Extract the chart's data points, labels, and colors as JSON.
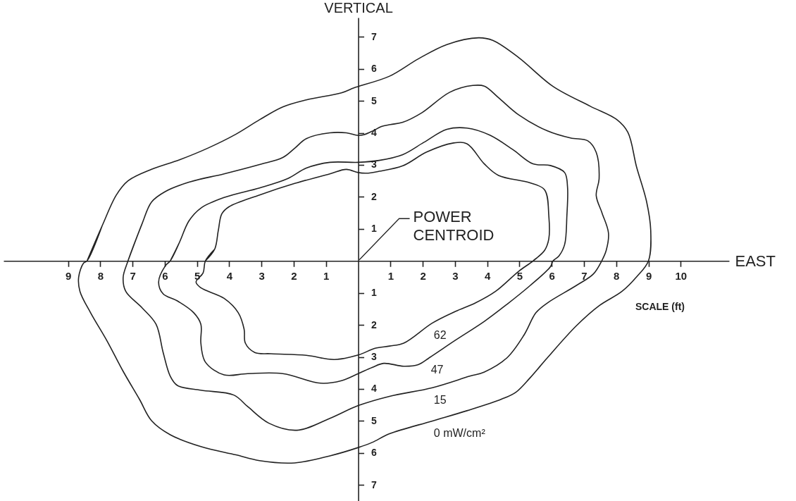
{
  "chart_data": {
    "type": "line",
    "xlabel": "EAST",
    "ylabel": "VERTICAL",
    "annotations": [
      "SCALE (ft)",
      "POWER CENTROID"
    ],
    "xlim": [
      -11,
      11.5
    ],
    "ylim": [
      -7.5,
      7.6
    ],
    "xticks": [
      {
        "value": -9,
        "label": "9"
      },
      {
        "value": -8,
        "label": "8"
      },
      {
        "value": -7,
        "label": "7"
      },
      {
        "value": -6,
        "label": "6"
      },
      {
        "value": -5,
        "label": "5"
      },
      {
        "value": -4,
        "label": "4"
      },
      {
        "value": -3,
        "label": "3"
      },
      {
        "value": -2,
        "label": "2"
      },
      {
        "value": -1,
        "label": "1"
      },
      1,
      2,
      3,
      4,
      5,
      6,
      7,
      8,
      9,
      10
    ],
    "yticks": [
      {
        "value": -7,
        "label": "7"
      },
      {
        "value": -6,
        "label": "6"
      },
      {
        "value": -5,
        "label": "5"
      },
      {
        "value": -4,
        "label": "4"
      },
      {
        "value": -3,
        "label": "3"
      },
      {
        "value": -2,
        "label": "2"
      },
      {
        "value": -1,
        "label": "1"
      },
      1,
      2,
      3,
      4,
      5,
      6,
      7
    ],
    "grid": false,
    "legend": false,
    "marker": "none",
    "line_style": "solid",
    "series": [
      {
        "name": "62",
        "color": "#222222",
        "x": [
          -4.74,
          -4.45,
          -4.34,
          -4.23,
          -4.01,
          -3.06,
          -1.97,
          -0.88,
          -0.37,
          0,
          0.25,
          0.65,
          1.38,
          2.12,
          2.93,
          3.37,
          3.91,
          4.35,
          5.33,
          5.78,
          5.91,
          5.91,
          5.78,
          5.42,
          4.98,
          4.26,
          3.64,
          3.01,
          2.3,
          1.41,
          0.97,
          0.52,
          0,
          -0.74,
          -1.61,
          -2.7,
          -3.21,
          -3.5,
          -3.54,
          -3.72,
          -4.16,
          -4.88,
          -5.03,
          -4.81,
          -4.74,
          -4.45
        ],
        "values": [
          0,
          0.37,
          0.95,
          1.47,
          1.69,
          2.06,
          2.42,
          2.72,
          2.86,
          2.76,
          2.74,
          2.8,
          2.97,
          3.4,
          3.68,
          3.66,
          3.03,
          2.67,
          2.44,
          2.22,
          1.41,
          0.69,
          0.33,
          0,
          -0.32,
          -0.95,
          -1.31,
          -1.58,
          -1.94,
          -2.57,
          -2.66,
          -2.73,
          -2.94,
          -3.08,
          -2.95,
          -2.9,
          -2.86,
          -2.57,
          -2.13,
          -1.62,
          -1.17,
          -0.84,
          -0.66,
          -0.37,
          0,
          0.37
        ]
      },
      {
        "name": "47",
        "color": "#222222",
        "x": [
          -5.83,
          -5.54,
          -5.25,
          -4.88,
          -4.16,
          -3.06,
          -2.19,
          -1.61,
          -0.88,
          0,
          0.65,
          1.38,
          2.03,
          2.75,
          3.37,
          4.08,
          4.79,
          5.42,
          5.96,
          6.4,
          6.49,
          6.47,
          6.4,
          6.22,
          6.04,
          5.96,
          5.33,
          4.62,
          3.91,
          3.01,
          2.21,
          1.86,
          1.41,
          0.79,
          0.43,
          0,
          -0.52,
          -1.17,
          -2.34,
          -3.43,
          -4.16,
          -4.74,
          -4.88,
          -4.88,
          -5.1,
          -5.61,
          -6.05,
          -6.19,
          -5.98,
          -5.83,
          -5.54
        ],
        "values": [
          0,
          0.59,
          1.25,
          1.65,
          1.98,
          2.28,
          2.57,
          2.9,
          3.08,
          3.08,
          3.14,
          3.32,
          3.7,
          4.11,
          4.15,
          3.93,
          3.48,
          3.03,
          2.98,
          2.76,
          2.31,
          1.41,
          0.51,
          0.15,
          0,
          -0.18,
          -0.77,
          -1.35,
          -1.89,
          -2.48,
          -3.02,
          -3.24,
          -3.29,
          -3.2,
          -3.33,
          -3.52,
          -3.74,
          -3.82,
          -3.52,
          -3.52,
          -3.56,
          -3.16,
          -2.57,
          -1.98,
          -1.62,
          -1.25,
          -1.03,
          -0.66,
          -0.15,
          0,
          0.59
        ]
      },
      {
        "name": "15",
        "color": "#222222",
        "x": [
          -7.14,
          -6.7,
          -6.41,
          -5.98,
          -5.25,
          -4.16,
          -3.06,
          -2.34,
          -1.97,
          -1.61,
          -0.88,
          -0.37,
          0,
          0.17,
          0.47,
          0.72,
          1.0,
          1.38,
          1.96,
          2.84,
          3.55,
          3.91,
          4.35,
          4.98,
          5.87,
          6.58,
          7.12,
          7.38,
          7.47,
          7.38,
          7.56,
          7.76,
          7.69,
          7.55,
          7.29,
          6.76,
          5.87,
          5.51,
          5.15,
          4.62,
          3.91,
          3.46,
          2.3,
          0.97,
          0,
          -0.88,
          -1.9,
          -2.77,
          -3.43,
          -3.86,
          -4.88,
          -5.61,
          -5.83,
          -6.05,
          -6.27,
          -6.7,
          -7.21,
          -7.29,
          -7.14,
          -6.7
        ],
        "values": [
          0,
          1.17,
          1.84,
          2.17,
          2.46,
          2.72,
          3.01,
          3.23,
          3.52,
          3.82,
          4.0,
          4.0,
          3.92,
          3.94,
          4.07,
          4.2,
          4.26,
          4.33,
          4.62,
          5.27,
          5.48,
          5.46,
          5.1,
          4.56,
          4.06,
          3.84,
          3.75,
          3.39,
          2.58,
          2.04,
          1.5,
          0.87,
          0.33,
          0,
          -0.41,
          -0.77,
          -1.31,
          -1.62,
          -2.3,
          -3.02,
          -3.47,
          -3.6,
          -3.96,
          -4.23,
          -4.52,
          -4.92,
          -5.29,
          -5.07,
          -4.55,
          -4.19,
          -4.04,
          -3.89,
          -3.6,
          -2.86,
          -1.98,
          -1.47,
          -0.95,
          -0.51,
          0,
          1.17
        ]
      },
      {
        "name": "0 mW/cm²",
        "color": "#222222",
        "x": [
          -8.41,
          -7.94,
          -7.5,
          -7.14,
          -6.41,
          -5.54,
          -4.67,
          -3.79,
          -3.06,
          -2.34,
          -1.61,
          -0.52,
          -0.15,
          0,
          0.97,
          1.86,
          2.75,
          3.73,
          4.17,
          4.98,
          6.04,
          7.2,
          8.01,
          8.36,
          8.63,
          8.94,
          9.07,
          9.0,
          8.63,
          8.18,
          7.47,
          6.76,
          5.87,
          5.33,
          4.89,
          4.44,
          3.37,
          2.3,
          0.97,
          0.43,
          0,
          -0.88,
          -1.97,
          -3.06,
          -3.79,
          -4.88,
          -5.83,
          -6.41,
          -6.78,
          -7.29,
          -7.79,
          -8.3,
          -8.63,
          -8.67,
          -8.52,
          -8.41,
          -7.94
        ],
        "values": [
          0,
          1.1,
          2.06,
          2.5,
          2.86,
          3.16,
          3.52,
          3.96,
          4.41,
          4.81,
          5.03,
          5.25,
          5.4,
          5.45,
          5.77,
          6.31,
          6.76,
          6.97,
          6.89,
          6.35,
          5.45,
          4.83,
          4.42,
          4.02,
          2.94,
          1.86,
          0.96,
          0,
          -0.5,
          -0.95,
          -1.4,
          -2.03,
          -3.02,
          -3.65,
          -4.1,
          -4.32,
          -4.68,
          -5.0,
          -5.4,
          -5.67,
          -5.83,
          -6.09,
          -6.31,
          -6.24,
          -6.06,
          -5.8,
          -5.43,
          -4.99,
          -4.33,
          -3.45,
          -2.5,
          -1.62,
          -0.95,
          -0.51,
          -0.07,
          0,
          1.1
        ]
      }
    ]
  }
}
